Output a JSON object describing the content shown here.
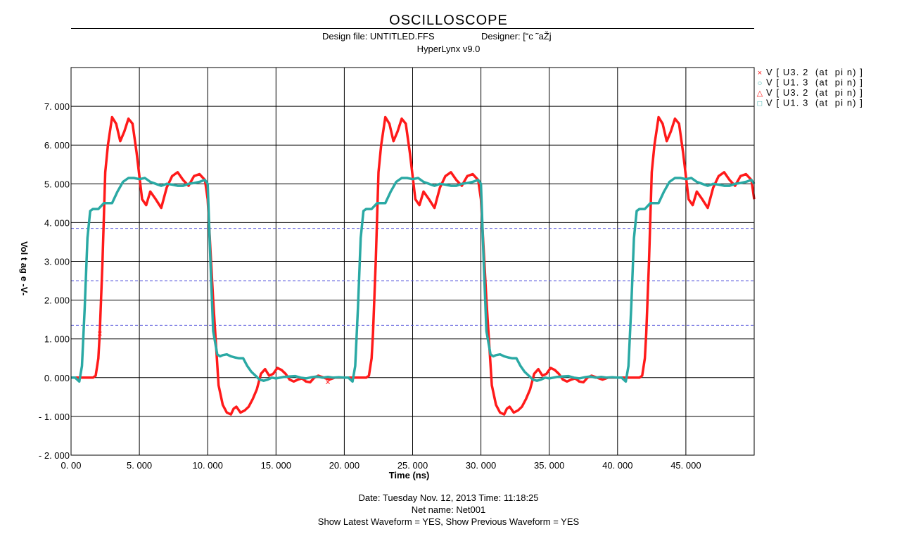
{
  "header": {
    "title": "OSCILLOSCOPE",
    "design_file": "Design file: UNTITLED.FFS",
    "designer": "Designer: [“c ˜aŽj",
    "version": "HyperLynx v9.0"
  },
  "footer": {
    "date_time": "Date: Tuesday Nov. 12, 2013   Time: 11:18:25",
    "net_name": "Net name: Net001",
    "show_waveform": "Show Latest Waveform = YES,   Show Previous Waveform = YES"
  },
  "chart_data": {
    "type": "line",
    "xlabel": "Time  (ns)",
    "ylabel": "Vol t ag e -V-",
    "xlim": [
      0,
      50
    ],
    "ylim": [
      -2,
      8
    ],
    "x_ticks": [
      0,
      5,
      10,
      15,
      20,
      25,
      30,
      35,
      40,
      45
    ],
    "x_tick_labels": [
      "0. 00",
      "5. 000",
      "10. 000",
      "15. 000",
      "20. 000",
      "25. 000",
      "30. 000",
      "35. 000",
      "40. 000",
      "45. 000"
    ],
    "y_ticks": [
      -2,
      -1,
      0,
      1,
      2,
      3,
      4,
      5,
      6,
      7
    ],
    "y_tick_labels": [
      "- 2. 000",
      "- 1. 000",
      "0. 000",
      "1. 000",
      "2. 000",
      "3. 000",
      "4. 000",
      "5. 000",
      "6. 000",
      "7. 000"
    ],
    "grid": true,
    "legend_position": "top-right",
    "threshold_lines": [
      3.85,
      2.5,
      1.35
    ],
    "colors": {
      "red": "#ff1a1a",
      "teal": "#2aa9a4",
      "threshold": "#5a5adc",
      "grid": "#000000"
    },
    "legend": [
      {
        "marker": "×",
        "label": "V [ U3. 2  (at  pi n) ]",
        "color": "#ff1a1a"
      },
      {
        "marker": "○",
        "label": "V [ U1. 3  (at  pi n) ]",
        "color": "#2aa9a4"
      },
      {
        "marker": "△",
        "label": "V [ U3. 2  (at  pi n) ]",
        "color": "#ff1a1a"
      },
      {
        "marker": "□",
        "label": "V [ U1. 3  (at  pi n) ]",
        "color": "#2aa9a4"
      }
    ],
    "series": [
      {
        "name": "V [ U3. 2  (at  pi n) ]",
        "color": "#ff1a1a",
        "x": [
          0,
          1,
          1.6,
          1.8,
          2,
          2.1,
          2.3,
          2.5,
          2.7,
          3.0,
          3.3,
          3.6,
          3.9,
          4.2,
          4.5,
          4.8,
          5.0,
          5.2,
          5.5,
          5.8,
          6.2,
          6.6,
          7.0,
          7.4,
          7.8,
          8.2,
          8.6,
          9.0,
          9.4,
          9.8,
          10.0,
          10.4,
          10.8,
          11.1,
          11.4,
          11.7,
          11.9,
          12.1,
          12.4,
          12.7,
          13.0,
          13.3,
          13.6,
          13.9,
          14.2,
          14.5,
          14.8,
          15.1,
          15.4,
          15.7,
          16.0,
          16.3,
          16.6,
          16.9,
          17.2,
          17.5,
          17.8,
          18.1,
          18.5,
          18.9,
          19.3,
          19.7,
          20.0
        ],
        "y": [
          0.0,
          0.0,
          0.0,
          0.05,
          0.5,
          1.15,
          3.0,
          5.3,
          6.0,
          6.72,
          6.55,
          6.1,
          6.35,
          6.68,
          6.55,
          5.8,
          5.2,
          4.6,
          4.45,
          4.8,
          4.6,
          4.38,
          4.9,
          5.2,
          5.3,
          5.1,
          4.95,
          5.2,
          5.25,
          5.1,
          4.6,
          2.0,
          -0.2,
          -0.7,
          -0.9,
          -0.95,
          -0.8,
          -0.75,
          -0.9,
          -0.85,
          -0.75,
          -0.55,
          -0.3,
          0.1,
          0.22,
          0.05,
          0.1,
          0.25,
          0.2,
          0.1,
          -0.05,
          -0.1,
          -0.05,
          -0.02,
          -0.1,
          -0.12,
          0.0,
          0.05,
          0.0,
          -0.05,
          0.0,
          0.0,
          0.0
        ]
      },
      {
        "name": "V [ U1. 3  (at  pi n) ]",
        "color": "#2aa9a4",
        "x": [
          0,
          0.3,
          0.6,
          0.8,
          1.0,
          1.2,
          1.4,
          1.6,
          2.0,
          2.4,
          2.8,
          3.0,
          3.4,
          3.8,
          4.2,
          4.6,
          5.0,
          5.4,
          5.8,
          6.2,
          6.6,
          7.0,
          7.4,
          7.8,
          8.2,
          8.6,
          9.0,
          9.4,
          9.8,
          10.0,
          10.2,
          10.4,
          10.7,
          10.9,
          11.1,
          11.4,
          11.7,
          12.0,
          12.3,
          12.6,
          12.9,
          13.2,
          13.5,
          13.8,
          14.1,
          14.4,
          14.7,
          15.0,
          15.3,
          15.6,
          16.0,
          16.4,
          16.8,
          17.2,
          17.6,
          18.0,
          18.4,
          18.8,
          19.2,
          19.6,
          20.0
        ],
        "y": [
          0.0,
          0.0,
          -0.1,
          0.3,
          1.8,
          3.6,
          4.3,
          4.35,
          4.35,
          4.5,
          4.5,
          4.5,
          4.8,
          5.05,
          5.15,
          5.15,
          5.12,
          5.15,
          5.05,
          5.0,
          4.95,
          5.0,
          4.98,
          4.95,
          4.95,
          5.0,
          5.02,
          5.05,
          5.1,
          5.0,
          3.0,
          1.2,
          0.6,
          0.55,
          0.58,
          0.6,
          0.55,
          0.52,
          0.5,
          0.5,
          0.3,
          0.15,
          0.05,
          -0.05,
          -0.08,
          -0.05,
          0.0,
          -0.02,
          0.0,
          0.02,
          0.03,
          0.04,
          0.0,
          -0.02,
          0.01,
          0.03,
          0.0,
          0.02,
          0.0,
          0.01,
          0.0
        ]
      }
    ],
    "period_ns": 20,
    "visible_periods": 3
  }
}
